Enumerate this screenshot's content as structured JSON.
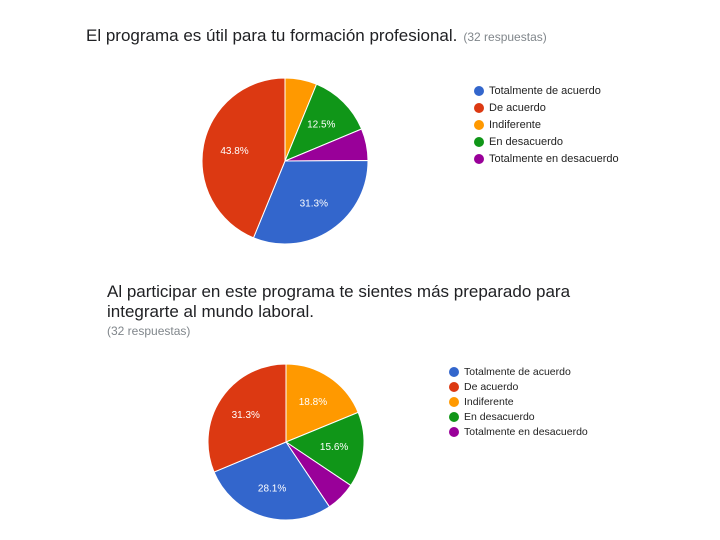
{
  "chart_data": [
    {
      "type": "pie",
      "title": "El programa es útil para tu formación profesional.",
      "responses": "(32 respuestas)",
      "categories": [
        "Totalmente de acuerdo",
        "De acuerdo",
        "Indiferente",
        "En desacuerdo",
        "Totalmente en desacuerdo"
      ],
      "values": [
        31.3,
        43.8,
        6.2,
        12.5,
        6.2
      ],
      "labels": [
        "31.3%",
        "43.8%",
        "",
        "12.5%",
        ""
      ],
      "colors": [
        "#3366cc",
        "#dc3912",
        "#ff9900",
        "#109618",
        "#990099"
      ],
      "legend": "right"
    },
    {
      "type": "pie",
      "title": "Al participar en este programa te sientes más preparado para integrarte al mundo laboral.",
      "responses": "(32 respuestas)",
      "categories": [
        "Totalmente de acuerdo",
        "De acuerdo",
        "Indiferente",
        "En desacuerdo",
        "Totalmente en desacuerdo"
      ],
      "values": [
        28.1,
        31.3,
        18.8,
        15.6,
        6.2
      ],
      "labels": [
        "28.1%",
        "31.3%",
        "18.8%",
        "15.6%",
        ""
      ],
      "colors": [
        "#3366cc",
        "#dc3912",
        "#ff9900",
        "#109618",
        "#990099"
      ],
      "legend": "right"
    }
  ]
}
